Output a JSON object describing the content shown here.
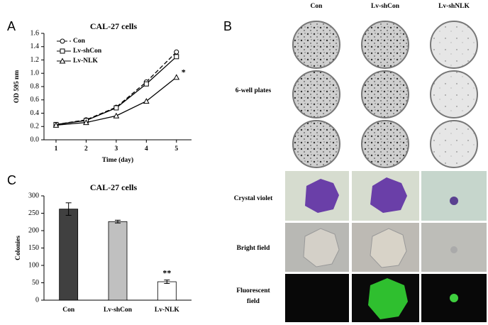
{
  "panels": {
    "A": "A",
    "B": "B",
    "C": "C"
  },
  "plates": {
    "columns": [
      "Con",
      "Lv-shCon",
      "Lv-shNLK"
    ],
    "row_labels": [
      "6-well plates",
      "Crystal violet",
      "Bright field"
    ],
    "fluorescent_label": [
      "Fluorescent",
      "field"
    ]
  },
  "chart_data": [
    {
      "type": "line",
      "title": "CAL-27 cells",
      "x_label": "Time (day)",
      "y_label": "OD 595 nm",
      "x": [
        1,
        2,
        3,
        4,
        5
      ],
      "xlim": [
        0.6,
        5.5
      ],
      "xticks": [
        1,
        2,
        3,
        4,
        5
      ],
      "ylim": [
        0,
        1.6
      ],
      "yticks": [
        {
          "value": 0,
          "label": "0.0"
        },
        0.2,
        0.4,
        0.6,
        0.8,
        {
          "value": 1,
          "label": "1.0"
        },
        1.2,
        1.4,
        1.6
      ],
      "legend": "upper left",
      "series": [
        {
          "name": "Con",
          "color": "#000000",
          "marker": "circle",
          "line_style": "dashed",
          "values": [
            0.23,
            0.3,
            0.49,
            0.87,
            1.32
          ]
        },
        {
          "name": "Lv-shCon",
          "color": "#000000",
          "marker": "square",
          "line_style": "solid",
          "values": [
            0.23,
            0.29,
            0.48,
            0.84,
            1.25
          ]
        },
        {
          "name": "Lv-NLK",
          "color": "#000000",
          "marker": "triangle",
          "line_style": "solid",
          "values": [
            0.22,
            0.26,
            0.36,
            0.58,
            0.94
          ]
        }
      ],
      "annotations": [
        {
          "text": "*",
          "x": 5,
          "y": 0.94
        }
      ]
    },
    {
      "type": "bar",
      "title": "CAL-27 cells",
      "y_label": "Colonies",
      "categories": [
        "Con",
        "Lv-shCon",
        "Lv-NLK"
      ],
      "values": [
        262,
        226,
        53
      ],
      "errors": [
        18,
        4,
        5
      ],
      "colors": [
        "#404040",
        "#c0c0c0",
        "#ffffff"
      ],
      "ylim": [
        0,
        300
      ],
      "yticks": [
        0,
        50,
        100,
        150,
        200,
        250,
        300
      ],
      "annotations": [
        {
          "text": "**",
          "category": 2
        }
      ]
    }
  ]
}
